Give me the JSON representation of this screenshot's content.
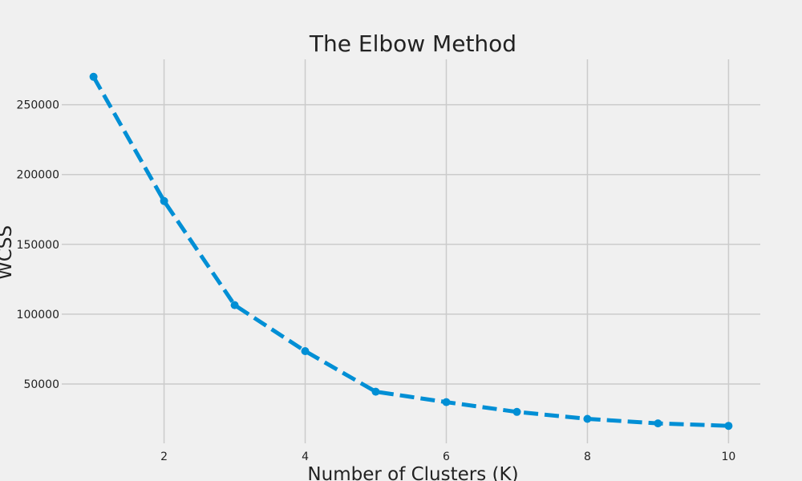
{
  "chart_data": {
    "type": "line",
    "title": "The Elbow Method",
    "xlabel": "Number of Clusters (K)",
    "ylabel": "WCSS",
    "x": [
      1,
      2,
      3,
      4,
      5,
      6,
      7,
      8,
      9,
      10
    ],
    "series": [
      {
        "values": [
          270000,
          181000,
          106500,
          73500,
          44500,
          37000,
          30000,
          25000,
          21800,
          20000
        ]
      }
    ],
    "xticks": [
      2,
      4,
      6,
      8,
      10
    ],
    "yticks": [
      50000,
      100000,
      150000,
      200000,
      250000
    ],
    "xtick_labels": [
      "2",
      "4",
      "6",
      "8",
      "10"
    ],
    "ytick_labels": [
      "50000",
      "100000",
      "150000",
      "200000",
      "250000"
    ],
    "xlim": [
      0.55,
      10.45
    ],
    "ylim": [
      7500,
      282500
    ],
    "grid": true,
    "line_style": "dashed",
    "marker": "circle",
    "colors": {
      "background": "#f0f0f0",
      "grid": "#cbcbcb",
      "series": "#008fd5",
      "text": "#222222"
    }
  }
}
